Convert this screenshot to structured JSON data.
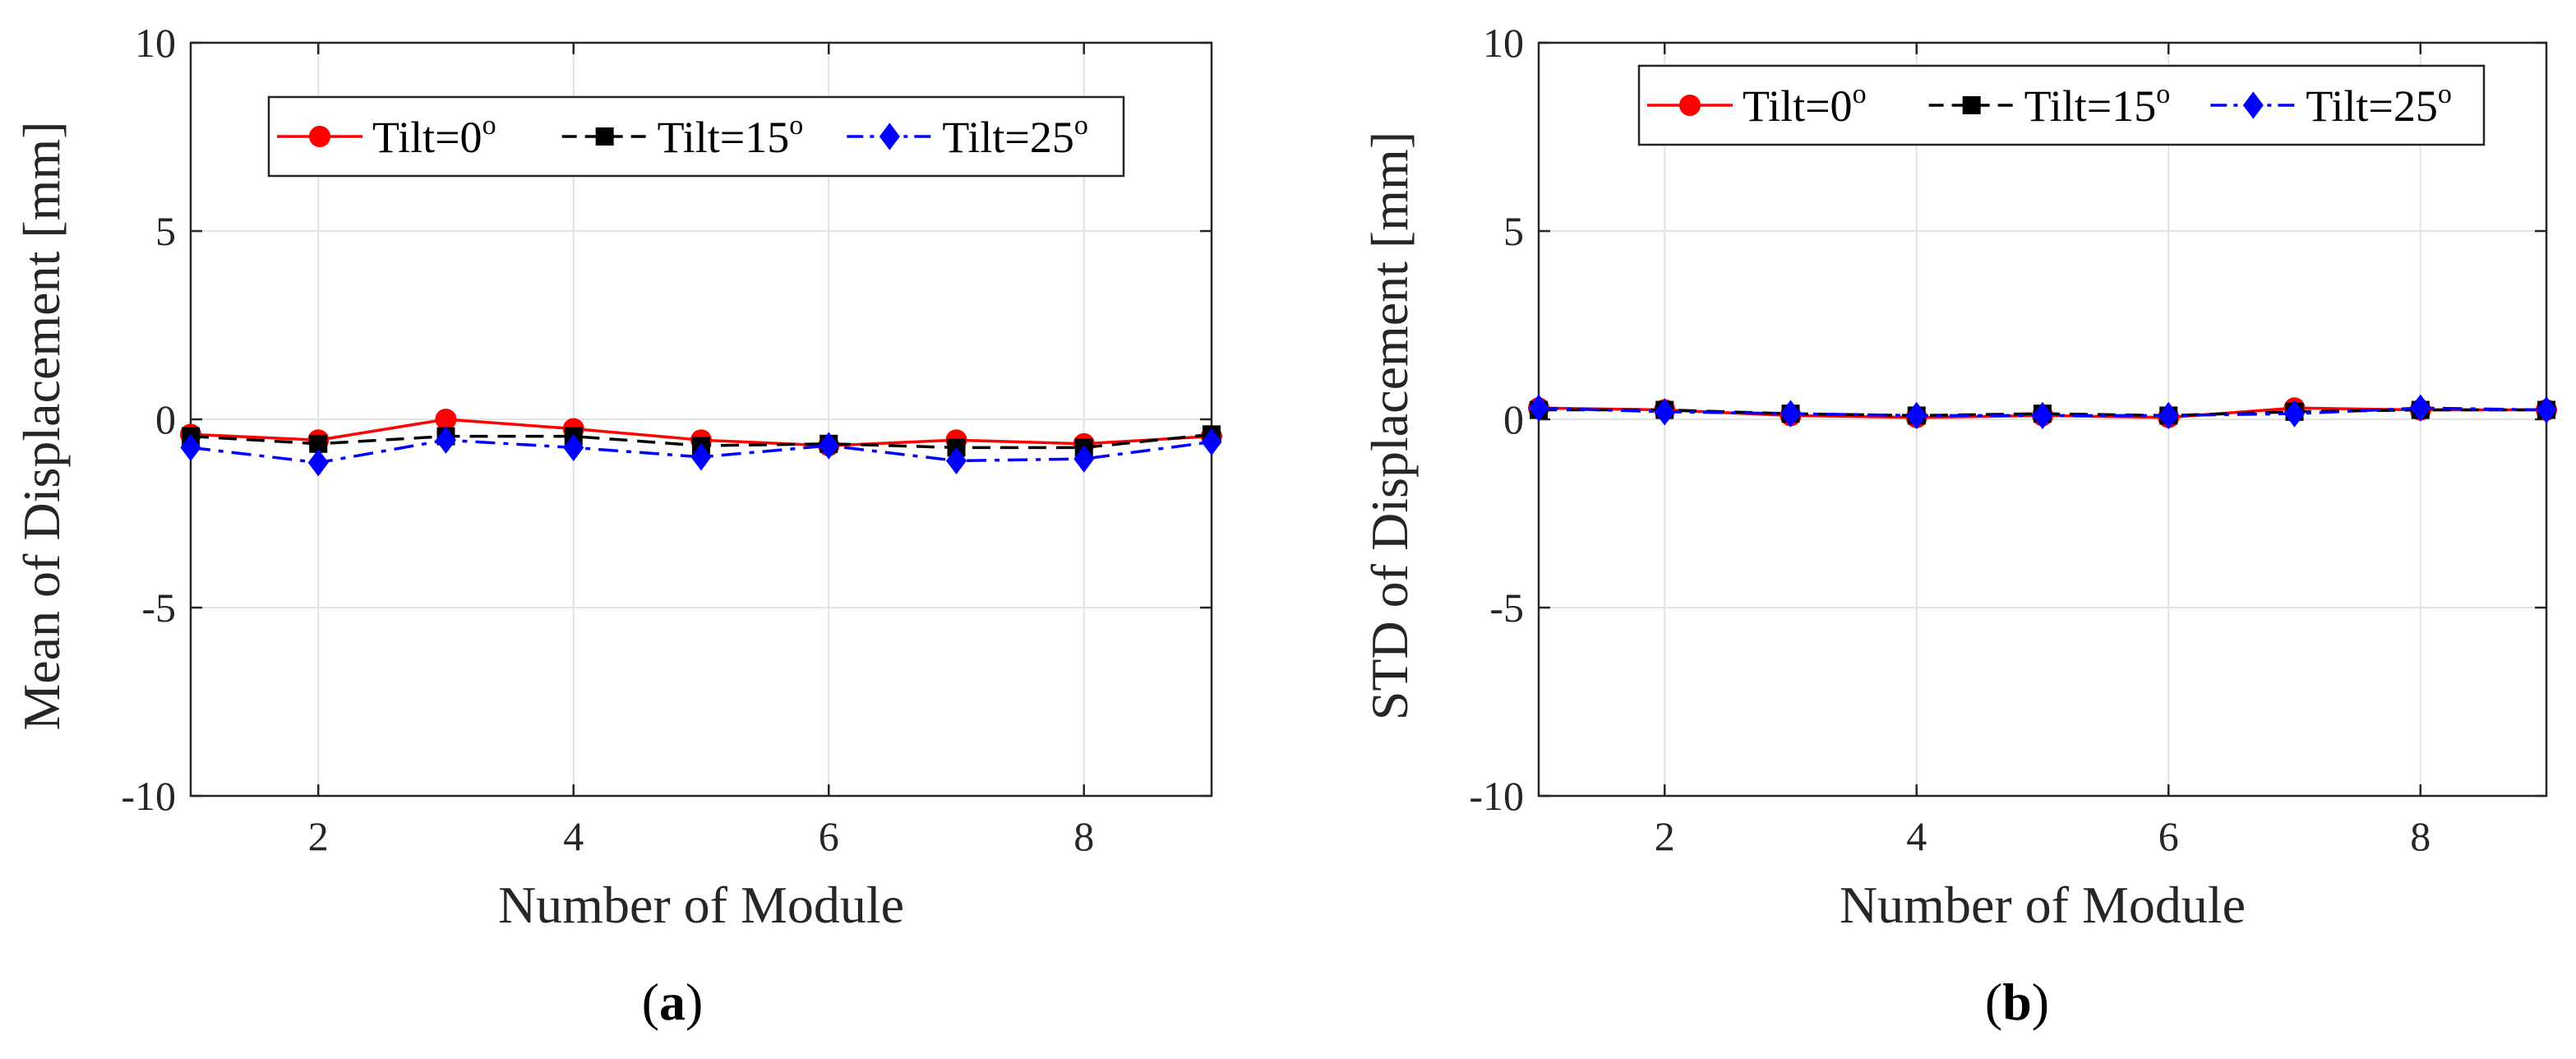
{
  "chart_data": [
    {
      "type": "line",
      "panel": "a",
      "caption": {
        "open": "(",
        "letter": "a",
        "close": ")"
      },
      "xlabel": "Number of Module",
      "ylabel": "Mean of Displacement [mm]",
      "xlim": [
        1,
        9
      ],
      "ylim": [
        -10,
        10
      ],
      "xticks": [
        2,
        4,
        6,
        8
      ],
      "yticks": [
        -10,
        -5,
        0,
        5,
        10
      ],
      "ytick_labels": [
        "-10",
        "-5",
        "0",
        "5",
        "10"
      ],
      "grid": true,
      "legend_position": "top",
      "x": [
        1,
        2,
        3,
        4,
        5,
        6,
        7,
        8,
        9
      ],
      "series": [
        {
          "name": "Tilt=0",
          "sup": "o",
          "color": "#ff0000",
          "dash": "solid",
          "marker": "circle",
          "values": [
            -0.4,
            -0.55,
            0.0,
            -0.25,
            -0.55,
            -0.7,
            -0.55,
            -0.65,
            -0.45
          ]
        },
        {
          "name": "Tilt=15",
          "sup": "o",
          "color": "#000000",
          "dash": "dashed",
          "marker": "square",
          "values": [
            -0.45,
            -0.65,
            -0.45,
            -0.45,
            -0.7,
            -0.65,
            -0.75,
            -0.75,
            -0.4
          ]
        },
        {
          "name": "Tilt=25",
          "sup": "o",
          "color": "#0000ff",
          "dash": "dashdot",
          "marker": "diamond",
          "values": [
            -0.75,
            -1.15,
            -0.55,
            -0.75,
            -1.0,
            -0.7,
            -1.1,
            -1.05,
            -0.6
          ]
        }
      ]
    },
    {
      "type": "line",
      "panel": "b",
      "caption": {
        "open": "(",
        "letter": "b",
        "close": ")"
      },
      "xlabel": "Number of Module",
      "ylabel": "STD of Displacement [mm]",
      "xlim": [
        1,
        9
      ],
      "ylim": [
        -10,
        10
      ],
      "xticks": [
        2,
        4,
        6,
        8
      ],
      "yticks": [
        -10,
        -5,
        0,
        5,
        10
      ],
      "ytick_labels": [
        "-10",
        "-5",
        "0",
        "5",
        "10"
      ],
      "grid": true,
      "legend_position": "top",
      "x": [
        1,
        2,
        3,
        4,
        5,
        6,
        7,
        8,
        9
      ],
      "series": [
        {
          "name": "Tilt=0",
          "sup": "o",
          "color": "#ff0000",
          "dash": "solid",
          "marker": "circle",
          "values": [
            0.3,
            0.25,
            0.1,
            0.05,
            0.1,
            0.05,
            0.3,
            0.25,
            0.25
          ]
        },
        {
          "name": "Tilt=15",
          "sup": "o",
          "color": "#000000",
          "dash": "dashed",
          "marker": "square",
          "values": [
            0.25,
            0.25,
            0.15,
            0.1,
            0.15,
            0.1,
            0.2,
            0.25,
            0.25
          ]
        },
        {
          "name": "Tilt=25",
          "sup": "o",
          "color": "#0000ff",
          "dash": "dashdot",
          "marker": "diamond",
          "values": [
            0.3,
            0.2,
            0.15,
            0.1,
            0.1,
            0.1,
            0.15,
            0.3,
            0.25
          ]
        }
      ]
    }
  ]
}
